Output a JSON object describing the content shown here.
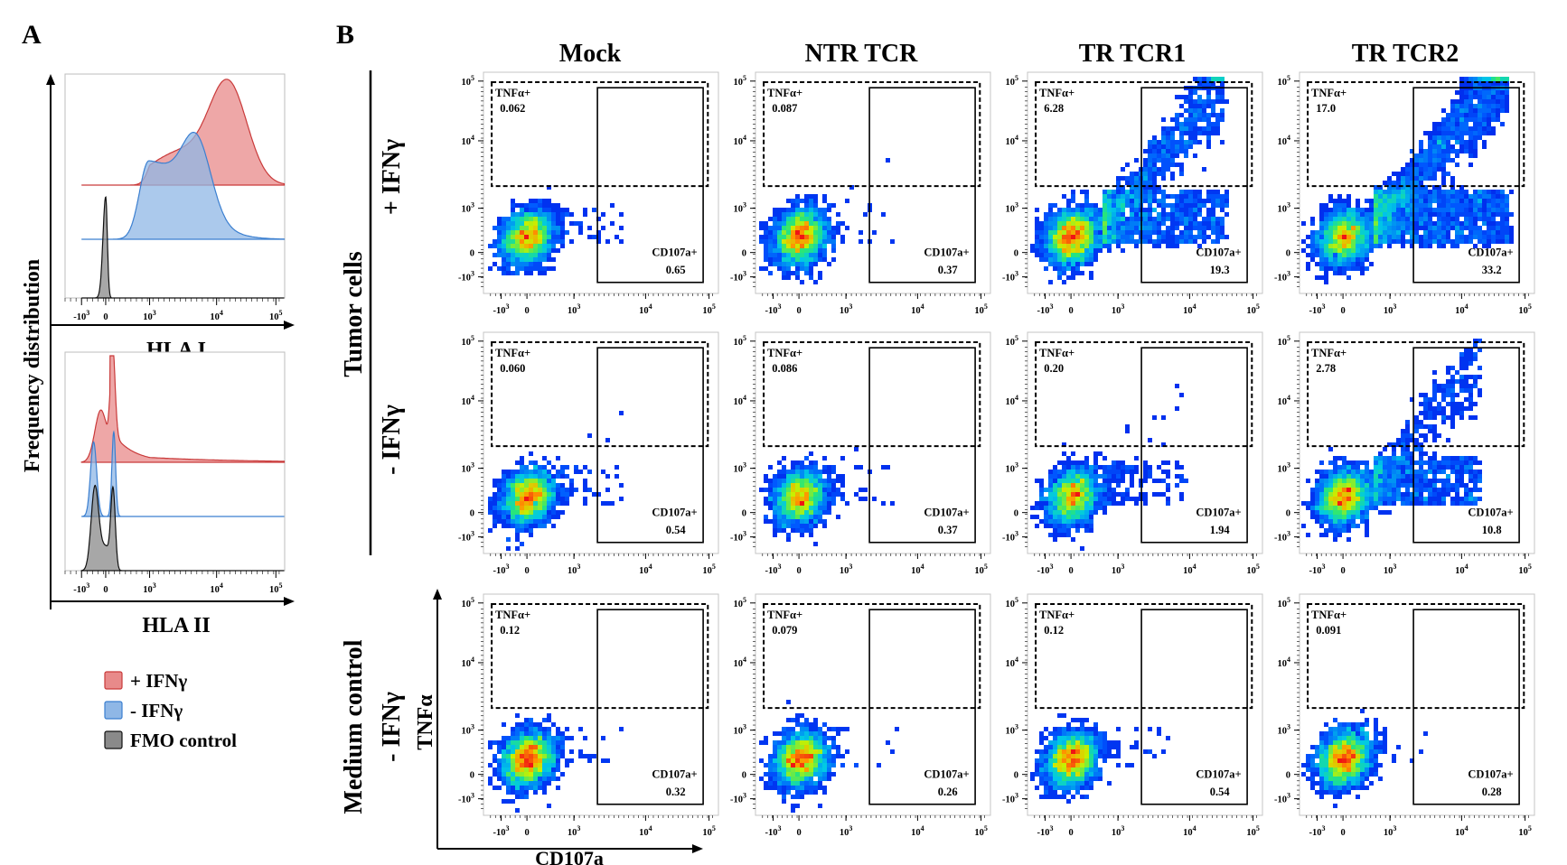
{
  "panel_a_label": "A",
  "panel_b_label": "B",
  "histogram_ylabel": "Frequency distribution",
  "legend": [
    {
      "label": "+ IFNγ",
      "color": "#e88a8a",
      "edge": "#c93a3a"
    },
    {
      "label": "- IFNγ",
      "color": "#8fb7e6",
      "edge": "#3b7fd0"
    },
    {
      "label": "FMO control",
      "color": "#8a8a8a",
      "edge": "#111111"
    }
  ],
  "columns": [
    "Mock",
    "NTR TCR",
    "TR TCR1",
    "TR TCR2"
  ],
  "row_group_labels": {
    "tumor": "Tumor cells",
    "medium": "Medium control"
  },
  "rows": [
    "+ IFNγ",
    "- IFNγ",
    "- IFNγ"
  ],
  "flow_xlabel": "CD107a",
  "flow_ylabel": "TNFα",
  "gate_labels": {
    "top": "TNFα+",
    "right": "CD107a+"
  },
  "chart_data": [
    {
      "type": "area",
      "xlabel": "HLA I",
      "x_ticks": [
        "-10^3",
        "0",
        "10^3",
        "10^4",
        "10^5"
      ],
      "series": [
        {
          "name": "+ IFNγ",
          "peak_log10": 4.3
        },
        {
          "name": "- IFNγ",
          "peak_log10": 3.8
        },
        {
          "name": "FMO control",
          "peak_log10": 0
        }
      ]
    },
    {
      "type": "area",
      "xlabel": "HLA II",
      "x_ticks": [
        "-10^3",
        "0",
        "10^3",
        "10^4",
        "10^5"
      ],
      "series": [
        {
          "name": "+ IFNγ",
          "peak_log10": 0.4
        },
        {
          "name": "- IFNγ",
          "peak_log10": 0.2
        },
        {
          "name": "FMO control",
          "peak_log10": 0
        }
      ]
    },
    {
      "type": "scatter",
      "xlabel": "CD107a",
      "ylabel": "TNFα",
      "x_ticks": [
        "-10^3",
        "0",
        "10^3",
        "10^4",
        "10^5"
      ],
      "y_ticks": [
        "-10^3",
        "0",
        "10^3",
        "10^4",
        "10^5"
      ],
      "quadrants": [
        {
          "row": "Tumor cells + IFNγ",
          "column": "Mock",
          "TNFa_pos": "0.062",
          "CD107a_pos": "0.65"
        },
        {
          "row": "Tumor cells + IFNγ",
          "column": "NTR TCR",
          "TNFa_pos": "0.087",
          "CD107a_pos": "0.37"
        },
        {
          "row": "Tumor cells + IFNγ",
          "column": "TR TCR1",
          "TNFa_pos": "6.28",
          "CD107a_pos": "19.3"
        },
        {
          "row": "Tumor cells + IFNγ",
          "column": "TR TCR2",
          "TNFa_pos": "17.0",
          "CD107a_pos": "33.2"
        },
        {
          "row": "Tumor cells - IFNγ",
          "column": "Mock",
          "TNFa_pos": "0.060",
          "CD107a_pos": "0.54"
        },
        {
          "row": "Tumor cells - IFNγ",
          "column": "NTR TCR",
          "TNFa_pos": "0.086",
          "CD107a_pos": "0.37"
        },
        {
          "row": "Tumor cells - IFNγ",
          "column": "TR TCR1",
          "TNFa_pos": "0.20",
          "CD107a_pos": "1.94"
        },
        {
          "row": "Tumor cells - IFNγ",
          "column": "TR TCR2",
          "TNFa_pos": "2.78",
          "CD107a_pos": "10.8"
        },
        {
          "row": "Medium control - IFNγ",
          "column": "Mock",
          "TNFa_pos": "0.12",
          "CD107a_pos": "0.32"
        },
        {
          "row": "Medium control - IFNγ",
          "column": "NTR TCR",
          "TNFa_pos": "0.079",
          "CD107a_pos": "0.26"
        },
        {
          "row": "Medium control - IFNγ",
          "column": "TR TCR1",
          "TNFa_pos": "0.12",
          "CD107a_pos": "0.54"
        },
        {
          "row": "Medium control - IFNγ",
          "column": "TR TCR2",
          "TNFa_pos": "0.091",
          "CD107a_pos": "0.28"
        }
      ]
    }
  ]
}
